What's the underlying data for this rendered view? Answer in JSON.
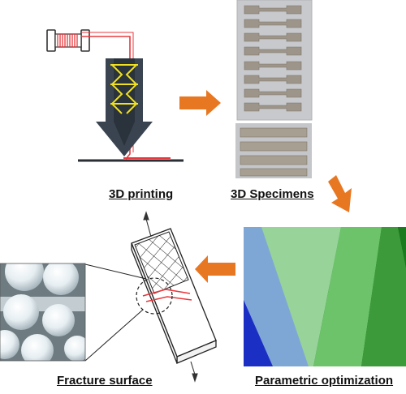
{
  "captions": {
    "printing": "3D printing",
    "specimens": "3D Specimens",
    "optimization": "Parametric optimization",
    "fracture": "Fracture surface"
  },
  "colors": {
    "arrow": "#e87722",
    "filament": "#e8383d",
    "nozzle": "#3a4450",
    "heater_coil": "#f0e020",
    "opt_band_1": "#1c2fc4",
    "opt_band_2": "#7fa7d6",
    "opt_band_3": "#98d39a",
    "opt_band_4": "#6cc36a",
    "opt_band_5": "#3d9a3a",
    "opt_band_6": "#1a7a1d",
    "opt_band_7": "#0b5f12"
  },
  "icons": [
    "filament-spool-icon",
    "extruder-nozzle-icon",
    "process-arrow-icon",
    "tensile-load-arrow-icon"
  ]
}
